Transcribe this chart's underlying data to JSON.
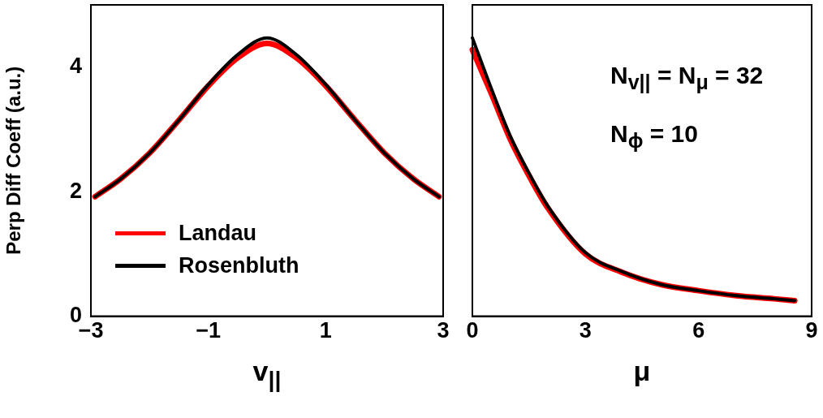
{
  "chart_data": [
    {
      "type": "line",
      "xlabel": "v$_{||}$",
      "ylabel": "Perp Diff Coeff (a.u.)",
      "xlim": [
        -3,
        3
      ],
      "xticks": [
        -3,
        -1,
        1,
        3
      ],
      "ylim": [
        0,
        5
      ],
      "yticks": [
        0,
        2,
        4
      ],
      "legend": "bottom left",
      "grid": false,
      "marker": "none",
      "line_style": "solid",
      "series": [
        {
          "name": "Landau",
          "color": "#ff0000",
          "x": [
            -2.93,
            -2.5,
            -2,
            -1.5,
            -1,
            -0.5,
            0,
            0.5,
            1,
            1.5,
            2,
            2.5,
            2.93
          ],
          "values": [
            1.92,
            2.2,
            2.62,
            3.15,
            3.7,
            4.15,
            4.38,
            4.15,
            3.7,
            3.15,
            2.62,
            2.2,
            1.92
          ]
        },
        {
          "name": "Rosenbluth",
          "color": "#000000",
          "x": [
            -2.93,
            -2.5,
            -2,
            -1.5,
            -1,
            -0.5,
            0,
            0.5,
            1,
            1.5,
            2,
            2.5,
            2.93
          ],
          "values": [
            1.92,
            2.2,
            2.62,
            3.15,
            3.72,
            4.2,
            4.47,
            4.2,
            3.72,
            3.15,
            2.62,
            2.2,
            1.92
          ]
        }
      ]
    },
    {
      "type": "line",
      "xlabel": "μ",
      "xlim": [
        0,
        9
      ],
      "xticks": [
        0,
        3,
        6,
        9
      ],
      "ylim": [
        0,
        5
      ],
      "yticks": [
        0,
        2,
        4
      ],
      "tick_labels": "x",
      "grid": false,
      "marker": "none",
      "line_style": "solid",
      "legend": false,
      "annotations": [
        "N$_{v||}$ = N$_{μ}$ = 32",
        "N$_{ϕ}$ = 10"
      ],
      "series": [
        {
          "color": "#ff0000",
          "x": [
            0,
            0.5,
            1,
            1.5,
            2,
            3,
            4,
            5,
            6,
            7,
            8,
            8.55
          ],
          "values": [
            4.28,
            3.58,
            2.85,
            2.26,
            1.74,
            1.0,
            0.7,
            0.51,
            0.41,
            0.33,
            0.28,
            0.25
          ]
        },
        {
          "color": "#000000",
          "x": [
            0,
            0.5,
            1,
            1.5,
            2,
            3,
            4,
            5,
            6,
            7,
            8,
            8.55
          ],
          "values": [
            4.47,
            3.66,
            2.9,
            2.3,
            1.77,
            1.02,
            0.71,
            0.51,
            0.41,
            0.33,
            0.28,
            0.25
          ]
        }
      ]
    }
  ]
}
